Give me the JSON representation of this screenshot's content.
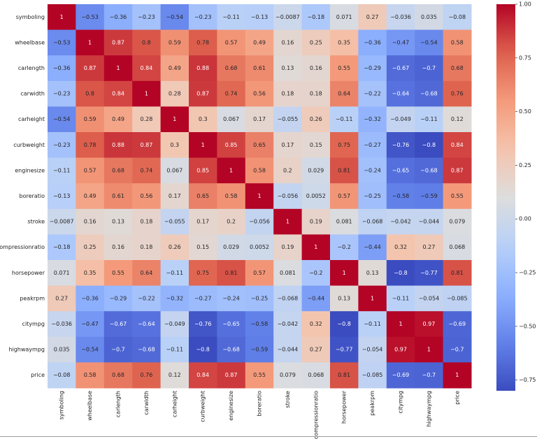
{
  "chart_data": {
    "type": "heatmap",
    "title": "",
    "colormap": "coolwarm",
    "vmin": -0.8,
    "vmax": 1.0,
    "labels": [
      "symboling",
      "wheelbase",
      "carlength",
      "carwidth",
      "carheight",
      "curbweight",
      "enginesize",
      "boreratio",
      "stroke",
      "compressionratio",
      "horsepower",
      "peakrpm",
      "citympg",
      "highwaympg",
      "price"
    ],
    "values": [
      [
        1,
        -0.53,
        -0.36,
        -0.23,
        -0.54,
        -0.23,
        -0.11,
        -0.13,
        -0.0087,
        -0.18,
        0.071,
        0.27,
        -0.036,
        0.035,
        -0.08
      ],
      [
        -0.53,
        1,
        0.87,
        0.8,
        0.59,
        0.78,
        0.57,
        0.49,
        0.16,
        0.25,
        0.35,
        -0.36,
        -0.47,
        -0.54,
        0.58
      ],
      [
        -0.36,
        0.87,
        1,
        0.84,
        0.49,
        0.88,
        0.68,
        0.61,
        0.13,
        0.16,
        0.55,
        -0.29,
        -0.67,
        -0.7,
        0.68
      ],
      [
        -0.23,
        0.8,
        0.84,
        1,
        0.28,
        0.87,
        0.74,
        0.56,
        0.18,
        0.18,
        0.64,
        -0.22,
        -0.64,
        -0.68,
        0.76
      ],
      [
        -0.54,
        0.59,
        0.49,
        0.28,
        1,
        0.3,
        0.067,
        0.17,
        -0.055,
        0.26,
        -0.11,
        -0.32,
        -0.049,
        -0.11,
        0.12
      ],
      [
        -0.23,
        0.78,
        0.88,
        0.87,
        0.3,
        1,
        0.85,
        0.65,
        0.17,
        0.15,
        0.75,
        -0.27,
        -0.76,
        -0.8,
        0.84
      ],
      [
        -0.11,
        0.57,
        0.68,
        0.74,
        0.067,
        0.85,
        1,
        0.58,
        0.2,
        0.029,
        0.81,
        -0.24,
        -0.65,
        -0.68,
        0.87
      ],
      [
        -0.13,
        0.49,
        0.61,
        0.56,
        0.17,
        0.65,
        0.58,
        1,
        -0.056,
        0.0052,
        0.57,
        -0.25,
        -0.58,
        -0.59,
        0.55
      ],
      [
        -0.0087,
        0.16,
        0.13,
        0.18,
        -0.055,
        0.17,
        0.2,
        -0.056,
        1,
        0.19,
        0.081,
        -0.068,
        -0.042,
        -0.044,
        0.079
      ],
      [
        -0.18,
        0.25,
        0.16,
        0.18,
        0.26,
        0.15,
        0.029,
        0.0052,
        0.19,
        1,
        -0.2,
        -0.44,
        0.32,
        0.27,
        0.068
      ],
      [
        0.071,
        0.35,
        0.55,
        0.64,
        -0.11,
        0.75,
        0.81,
        0.57,
        0.081,
        -0.2,
        1,
        0.13,
        -0.8,
        -0.77,
        0.81
      ],
      [
        0.27,
        -0.36,
        -0.29,
        -0.22,
        -0.32,
        -0.27,
        -0.24,
        -0.25,
        -0.068,
        -0.44,
        0.13,
        1,
        -0.11,
        -0.054,
        -0.085
      ],
      [
        -0.036,
        -0.47,
        -0.67,
        -0.64,
        -0.049,
        -0.76,
        -0.65,
        -0.58,
        -0.042,
        0.32,
        -0.8,
        -0.11,
        1,
        0.97,
        -0.69
      ],
      [
        0.035,
        -0.54,
        -0.7,
        -0.68,
        -0.11,
        -0.8,
        -0.68,
        -0.59,
        -0.044,
        0.27,
        -0.77,
        -0.054,
        0.97,
        1,
        -0.7
      ],
      [
        -0.08,
        0.58,
        0.68,
        0.76,
        0.12,
        0.84,
        0.87,
        0.55,
        0.079,
        0.068,
        0.81,
        -0.085,
        -0.69,
        -0.7,
        1
      ]
    ],
    "colorbar": {
      "ticks": [
        1.0,
        0.75,
        0.5,
        0.25,
        0.0,
        -0.25,
        -0.5,
        -0.75
      ],
      "tick_labels": [
        "1.00",
        "0.75",
        "0.50",
        "0.25",
        "0.00",
        "−0.25",
        "−0.50",
        "−0.75"
      ]
    }
  }
}
